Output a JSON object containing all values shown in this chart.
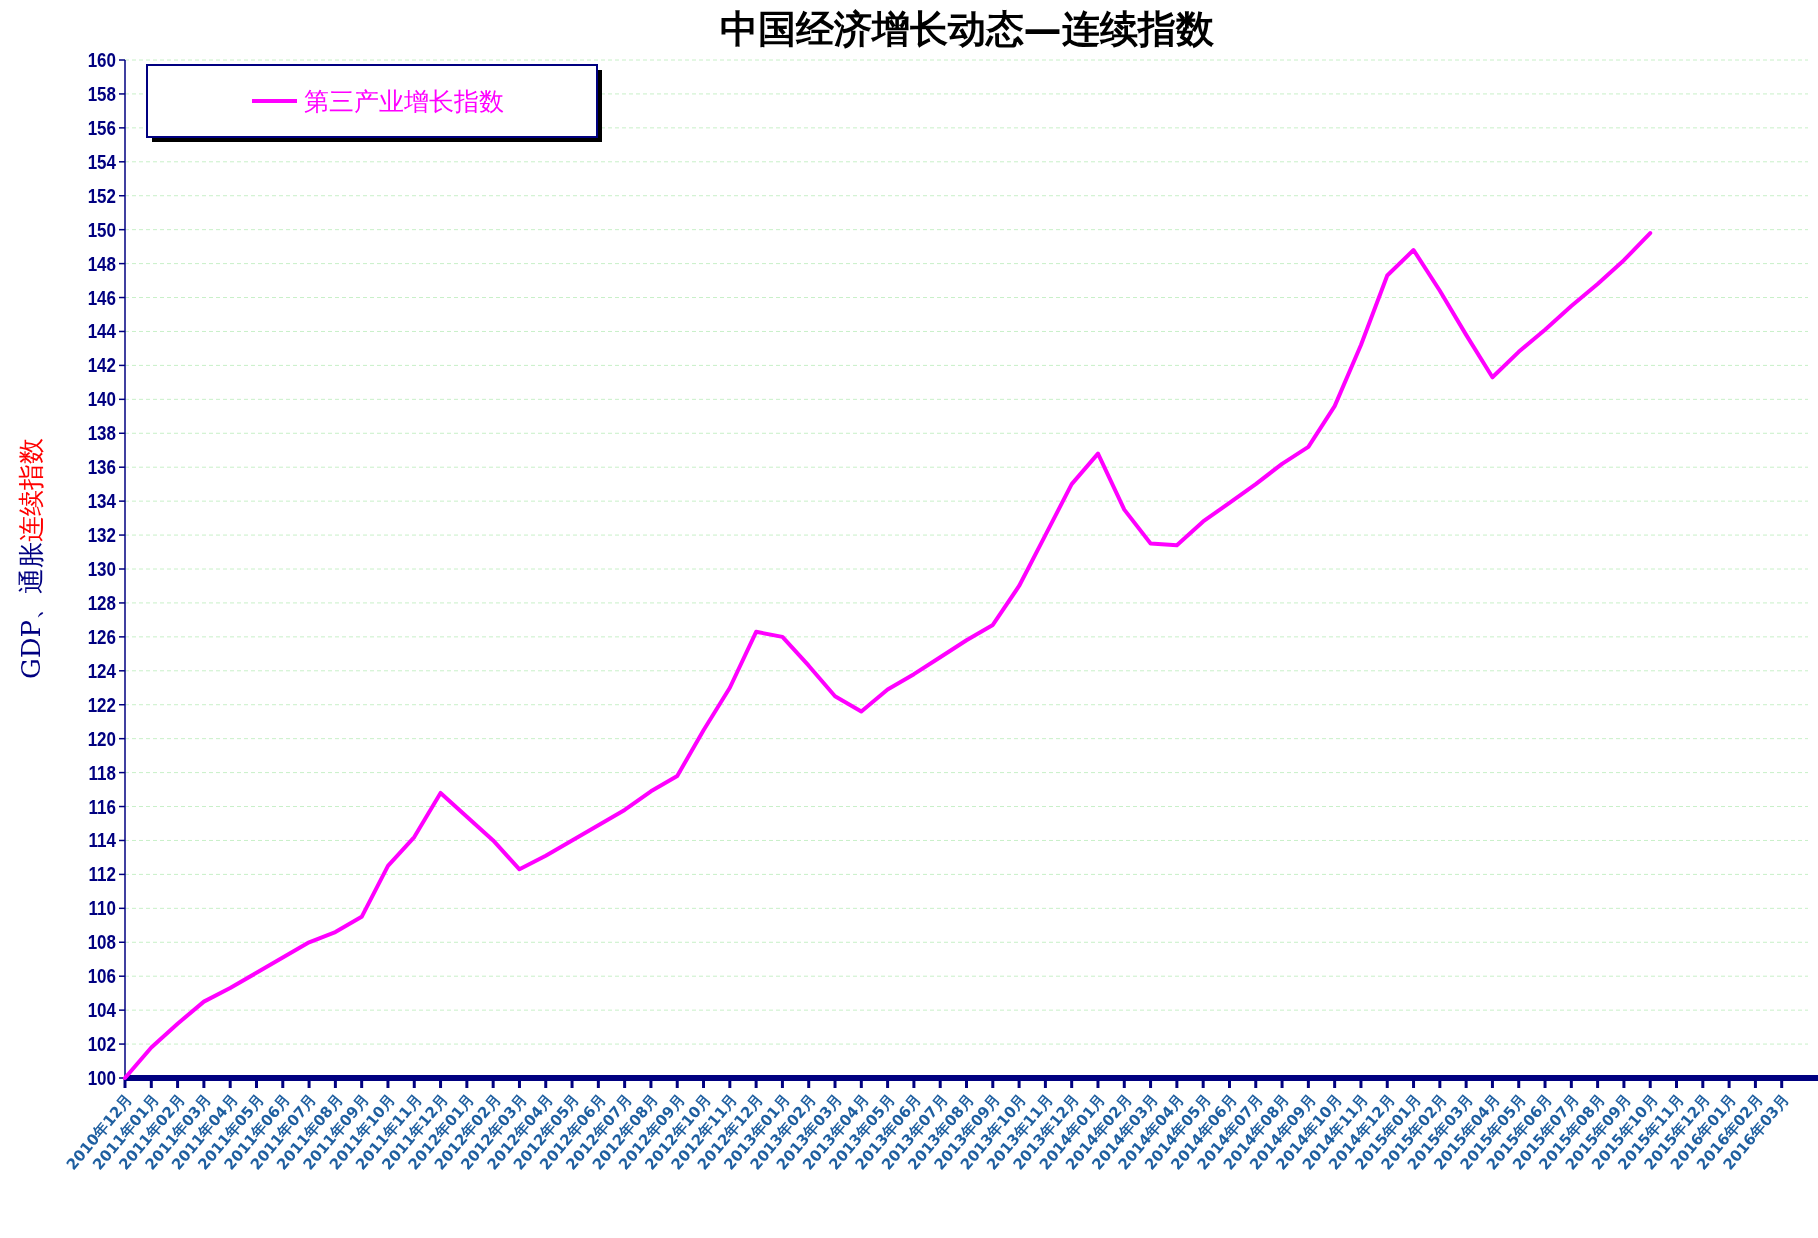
{
  "chart_data": {
    "type": "line",
    "title": "中国经济增长动态—连续指数",
    "ylabel": "GDP、通胀连续指数",
    "categories": [
      "2010年12月",
      "2011年01月",
      "2011年02月",
      "2011年03月",
      "2011年04月",
      "2011年05月",
      "2011年06月",
      "2011年07月",
      "2011年08月",
      "2011年09月",
      "2011年10月",
      "2011年11月",
      "2011年12月",
      "2012年01月",
      "2012年02月",
      "2012年03月",
      "2012年04月",
      "2012年05月",
      "2012年06月",
      "2012年07月",
      "2012年08月",
      "2012年09月",
      "2012年10月",
      "2012年11月",
      "2012年12月",
      "2013年01月",
      "2013年02月",
      "2013年03月",
      "2013年04月",
      "2013年05月",
      "2013年06月",
      "2013年07月",
      "2013年08月",
      "2013年09月",
      "2013年10月",
      "2013年11月",
      "2013年12月",
      "2014年01月",
      "2014年02月",
      "2014年03月",
      "2014年04月",
      "2014年05月",
      "2014年06月",
      "2014年07月",
      "2014年08月",
      "2014年09月",
      "2014年10月",
      "2014年11月",
      "2014年12月",
      "2015年01月",
      "2015年02月",
      "2015年03月",
      "2015年04月",
      "2015年05月",
      "2015年06月",
      "2015年07月",
      "2015年08月",
      "2015年09月",
      "2015年10月",
      "2015年11月",
      "2015年12月",
      "2016年01月",
      "2016年02月",
      "2016年03月"
    ],
    "series": [
      {
        "name": "第三产业增长指数",
        "color": "#ff00ff",
        "values": [
          100,
          101.8,
          103.2,
          104.5,
          105.3,
          106.2,
          107.1,
          108,
          108.6,
          109.5,
          112.5,
          114.2,
          116.8,
          115.4,
          114,
          112.3,
          113.1,
          114,
          114.9,
          115.8,
          116.9,
          117.8,
          120.5,
          123,
          126.3,
          126,
          124.3,
          122.5,
          121.6,
          122.9,
          123.8,
          124.8,
          125.8,
          126.7,
          129,
          132,
          135,
          136.8,
          133.5,
          131.5,
          131.4,
          132.8,
          133.9,
          135,
          136.2,
          137.2,
          139.6,
          143.2,
          147.3,
          148.8,
          146.4,
          143.8,
          141.3,
          142.8,
          144.1,
          145.5,
          146.8,
          148.2,
          149.8,
          null,
          null,
          null,
          null,
          null
        ]
      }
    ],
    "ylim": [
      100,
      160
    ],
    "yticks": [
      100,
      102,
      104,
      106,
      108,
      110,
      112,
      114,
      116,
      118,
      120,
      122,
      124,
      126,
      128,
      130,
      132,
      134,
      136,
      138,
      140,
      142,
      144,
      146,
      148,
      150,
      152,
      154,
      156,
      158,
      160
    ],
    "grid": "y",
    "legend": "top left",
    "line_style": "solid",
    "marker": "none"
  }
}
